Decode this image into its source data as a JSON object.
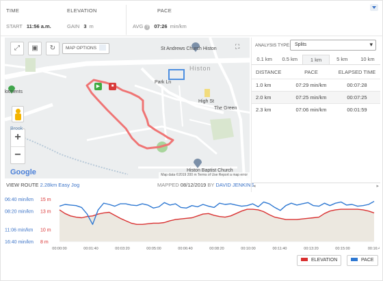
{
  "stats": {
    "time_label": "TIME",
    "start_label": "START",
    "start_value": "11:56 a.m.",
    "elevation_label": "ELEVATION",
    "gain_label": "GAIN",
    "gain_value": "3",
    "gain_unit": "m",
    "pace_label": "PACE",
    "avg_label": "AVG",
    "avg_value": "07:26",
    "avg_unit": "min/km"
  },
  "map": {
    "options_label": "MAP OPTIONS",
    "labels": {
      "church": "St Andrews Church Histon",
      "histon": "Histon",
      "allotments": "llotments",
      "park": "Park Ln",
      "baptist": "Histon Baptist Church",
      "green": "The Green",
      "high": "High St",
      "brook": "Brook"
    },
    "google": "Google",
    "attribution": "Map data ©2019   200 m       Terms of Use   Report a map error",
    "route_color": "#ef7474"
  },
  "footer": {
    "view_route": "VIEW ROUTE",
    "route_name": "2.28km Easy Jog",
    "mapped_label": "MAPPED",
    "mapped_date": "08/12/2019",
    "by_label": "BY",
    "author": "DAVID JENKINS"
  },
  "analysis": {
    "type_label": "ANALYSIS TYPE:",
    "type_value": "Splits",
    "tabs": [
      "0.1 km",
      "0.5 km",
      "1 km",
      "5 km",
      "10 km"
    ],
    "active_tab": "1 km",
    "headers": [
      "DISTANCE",
      "PACE",
      "ELAPSED TIME"
    ],
    "rows": [
      [
        "1.0 km",
        "07:29 min/km",
        "00:07:28"
      ],
      [
        "2.0 km",
        "07:25 min/km",
        "00:07:25"
      ],
      [
        "2.3 km",
        "07:06 min/km",
        "00:01:59"
      ]
    ]
  },
  "chart_data": {
    "type": "line",
    "pace_ticks": [
      "06:40 min/km",
      "08:20 min/km",
      "11:06 min/km",
      "16:40 min/km"
    ],
    "elev_ticks": [
      "15 m",
      "13 m",
      "10 m",
      "8 m"
    ],
    "x_ticks": [
      "00:00:00",
      "00:01:40",
      "00:03:20",
      "00:05:00",
      "00:06:40",
      "00:08:20",
      "00:10:00",
      "00:11:40",
      "00:13:20",
      "00:15:00",
      "00:16:4"
    ],
    "series": [
      {
        "name": "ELEVATION",
        "color": "#d93030",
        "values": [
          13.2,
          12.6,
          12.2,
          12.0,
          11.9,
          12.1,
          12.2,
          12.5,
          12.7,
          12.8,
          12.3,
          11.8,
          11.4,
          11.0,
          10.8,
          10.8,
          10.9,
          11.0,
          11.0,
          11.1,
          11.4,
          11.6,
          11.7,
          11.8,
          11.9,
          12.2,
          12.5,
          12.6,
          12.3,
          12.1,
          12.0,
          12.2,
          12.6,
          13.0,
          13.3,
          13.3,
          13.2,
          12.9,
          12.4,
          12.0,
          11.8,
          11.6,
          11.6,
          11.6,
          11.7,
          11.8,
          11.9,
          12.0,
          12.6,
          13.0,
          13.2,
          13.3,
          13.3,
          13.3,
          13.3,
          13.2,
          13.0,
          12.7
        ]
      },
      {
        "name": "PACE",
        "color": "#2e78d2",
        "values": [
          13.8,
          14.1,
          14.0,
          13.9,
          13.6,
          12.5,
          10.8,
          13.2,
          14.3,
          14.1,
          13.8,
          14.2,
          14.2,
          14.0,
          13.9,
          14.2,
          14.0,
          13.5,
          13.7,
          14.4,
          14.0,
          14.2,
          13.6,
          13.5,
          13.9,
          13.7,
          14.1,
          13.8,
          13.6,
          14.3,
          14.1,
          14.2,
          14.0,
          13.8,
          13.9,
          14.2,
          13.7,
          14.5,
          14.2,
          13.6,
          13.1,
          13.9,
          14.3,
          14.0,
          14.2,
          14.4,
          13.9,
          13.8,
          14.3,
          13.9,
          14.3,
          14.5,
          14.0,
          14.1,
          13.8,
          13.9,
          14.1,
          14.6
        ]
      }
    ]
  },
  "legend": {
    "elevation": "ELEVATION",
    "pace": "PACE",
    "elevation_color": "#d93030",
    "pace_color": "#2e78d2"
  }
}
